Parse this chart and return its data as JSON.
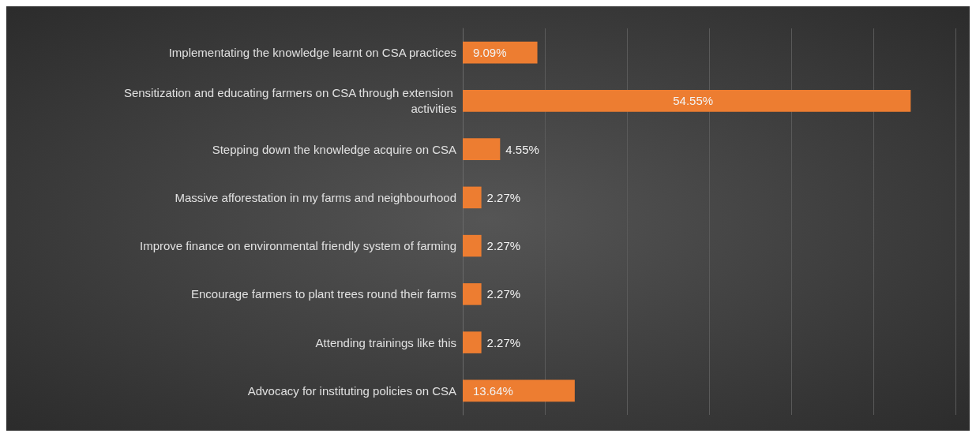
{
  "chart_data": {
    "type": "bar",
    "orientation": "horizontal",
    "categories": [
      "Implementating the knowledge learnt on CSA practices",
      "Sensitization and educating farmers on CSA through extension activities",
      "Stepping down the knowledge acquire on CSA",
      "Massive afforestation in my farms and neighbourhood",
      "Improve finance on environmental friendly system of farming",
      "Encourage farmers to plant trees round their farms",
      "Attending trainings like this",
      "Advocacy for instituting policies on CSA"
    ],
    "values": [
      9.09,
      54.55,
      4.55,
      2.27,
      2.27,
      2.27,
      2.27,
      13.64
    ],
    "value_labels": [
      "9.09%",
      "54.55%",
      "4.55%",
      "2.27%",
      "2.27%",
      "2.27%",
      "2.27%",
      "13.64%"
    ],
    "color": "#ed7d31",
    "xlim": [
      0,
      60
    ],
    "xticks": [
      {
        "value": 0,
        "label": null
      },
      {
        "value": 10,
        "label": null
      },
      {
        "value": 20,
        "label": null
      },
      {
        "value": 30,
        "label": null
      },
      {
        "value": 40,
        "label": null
      },
      {
        "value": 50,
        "label": null
      },
      {
        "value": 60,
        "label": null
      }
    ],
    "tick_labels": "y",
    "grid": "x"
  }
}
